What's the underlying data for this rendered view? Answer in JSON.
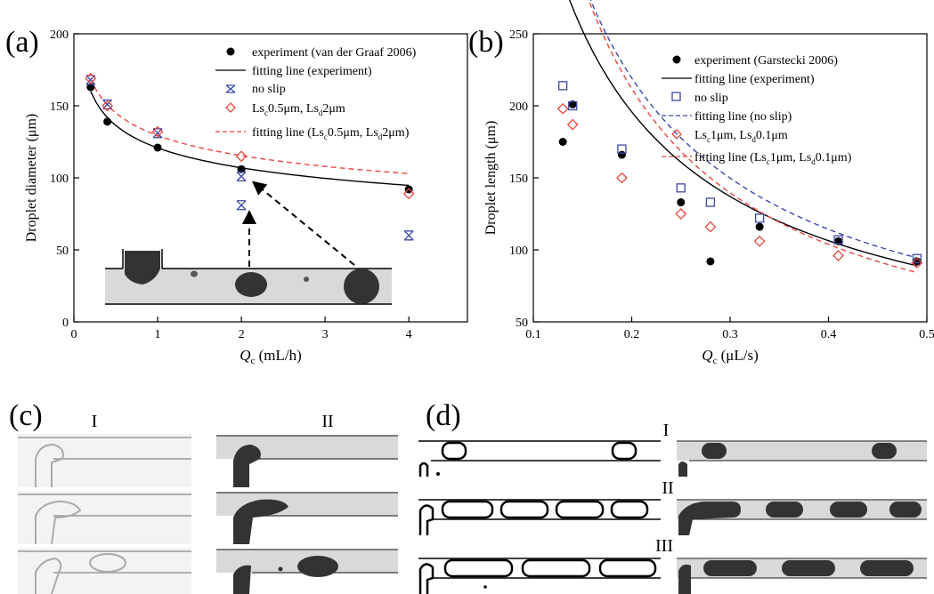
{
  "panel_a": {
    "label": "(a)",
    "ylabel_main": "Droplet diameter (",
    "ylabel_unit": "μm",
    "ylabel_end": ")",
    "xlabel_q": "Q",
    "xlabel_sub": "c",
    "xlabel_unit": " (mL/h)",
    "legend": {
      "exp": "experiment (van der Graaf 2006)",
      "fit_exp": "fitting line (experiment)",
      "noslip": "no slip",
      "ls_pre": "Ls",
      "ls_sub1": "c",
      "ls_mid": "0.5μm, Ls",
      "ls_sub2": "d",
      "ls_end": "2μm",
      "fit_pre": "fitting line (Ls",
      "fit_sub1": "c",
      "fit_mid": "0.5μm, Ls",
      "fit_sub2": "d",
      "fit_end": "2μm)"
    }
  },
  "panel_b": {
    "label": "(b)",
    "ylabel_main": "Droplet length (",
    "ylabel_unit": "μm",
    "ylabel_end": ")",
    "xlabel_q": "Q",
    "xlabel_sub": "c",
    "xlabel_unit": " (μL/s)",
    "legend": {
      "exp": "experiment (Garstecki 2006)",
      "fit_exp": "fitting line (experiment)",
      "noslip": "no slip",
      "fit_noslip": "fitting line (no slip)",
      "ls_pre": "Ls",
      "ls_sub1": "c",
      "ls_mid": "1μm, Ls",
      "ls_sub2": "d",
      "ls_end": "0.1μm",
      "fit_pre": "fitting line (Ls",
      "fit_sub1": "c",
      "fit_mid": "1μm, Ls",
      "fit_sub2": "d",
      "fit_end": "0.1μm)"
    }
  },
  "panel_c": {
    "label": "(c)",
    "col1": "I",
    "col2": "II"
  },
  "panel_d": {
    "label": "(d)",
    "row1": "I",
    "row2": "II",
    "row3": "III"
  },
  "colors": {
    "red": "#e8473f",
    "blue": "#3a49a8",
    "black": "#000000",
    "gray": "#444444",
    "channel": "#d9d9d9"
  },
  "chart_data": [
    {
      "type": "scatter",
      "xlim": [
        0,
        4.7
      ],
      "ylim": [
        0,
        200
      ],
      "xticks": [
        0,
        1,
        2,
        3,
        4
      ],
      "yticks": [
        0,
        50,
        100,
        150,
        200
      ],
      "series": [
        {
          "name": "experiment (van der Graaf 2006)",
          "marker": "dot",
          "x": [
            0.2,
            0.4,
            1,
            2,
            4
          ],
          "y": [
            163,
            139,
            121,
            106,
            92
          ]
        },
        {
          "name": "no slip",
          "marker": "xbox",
          "x": [
            0.2,
            0.4,
            1,
            2,
            2,
            4
          ],
          "y": [
            168,
            151,
            131,
            101,
            81,
            60
          ]
        },
        {
          "name": "Lsc0.5μm, Lsd2μm",
          "marker": "diamond",
          "x": [
            0.2,
            0.4,
            1,
            2,
            4
          ],
          "y": [
            169,
            150,
            132,
            115,
            89
          ]
        }
      ],
      "fits": [
        {
          "name": "fitting line (experiment)",
          "style": "solid",
          "a": 120.8,
          "b": -0.175,
          "x": [
            0.2,
            4
          ]
        },
        {
          "name": "fitting line (Lsc0.5μm, Lsd2μm)",
          "style": "dashed",
          "a": 129.4,
          "b": -0.165,
          "x": [
            0.2,
            4
          ]
        }
      ]
    },
    {
      "type": "scatter",
      "xlim": [
        0.1,
        0.5
      ],
      "ylim": [
        50,
        250
      ],
      "xticks": [
        0.1,
        0.2,
        0.3,
        0.4,
        0.5
      ],
      "yticks": [
        50,
        100,
        150,
        200,
        250
      ],
      "series": [
        {
          "name": "experiment (Garstecki 2006)",
          "marker": "dot",
          "x": [
            0.13,
            0.14,
            0.19,
            0.25,
            0.28,
            0.33,
            0.41,
            0.49
          ],
          "y": [
            175,
            201,
            166,
            133,
            92,
            116,
            106,
            92
          ]
        },
        {
          "name": "no slip",
          "marker": "square",
          "x": [
            0.13,
            0.14,
            0.19,
            0.25,
            0.28,
            0.33,
            0.41,
            0.49
          ],
          "y": [
            214,
            200,
            170,
            143,
            133,
            122,
            107,
            94
          ]
        },
        {
          "name": "Lsc1μm, Lsd0.1μm",
          "marker": "diamond",
          "x": [
            0.13,
            0.14,
            0.19,
            0.25,
            0.28,
            0.33,
            0.41,
            0.49
          ],
          "y": [
            198,
            187,
            150,
            125,
            116,
            106,
            96,
            91
          ]
        }
      ],
      "fits": [
        {
          "name": "fitting line (experiment)",
          "style": "solid",
          "color": "black",
          "a": 47.5,
          "b": -0.88,
          "x": [
            0.13,
            0.49
          ]
        },
        {
          "name": "fitting line (no slip)",
          "style": "dashed",
          "color": "blue",
          "a": 48.3,
          "b": -0.94,
          "x": [
            0.13,
            0.49
          ]
        },
        {
          "name": "fitting line (Lsc1μm, Lsd0.1μm)",
          "style": "dashed",
          "color": "red",
          "a": 40.4,
          "b": -1.03,
          "x": [
            0.13,
            0.49
          ]
        }
      ]
    }
  ]
}
